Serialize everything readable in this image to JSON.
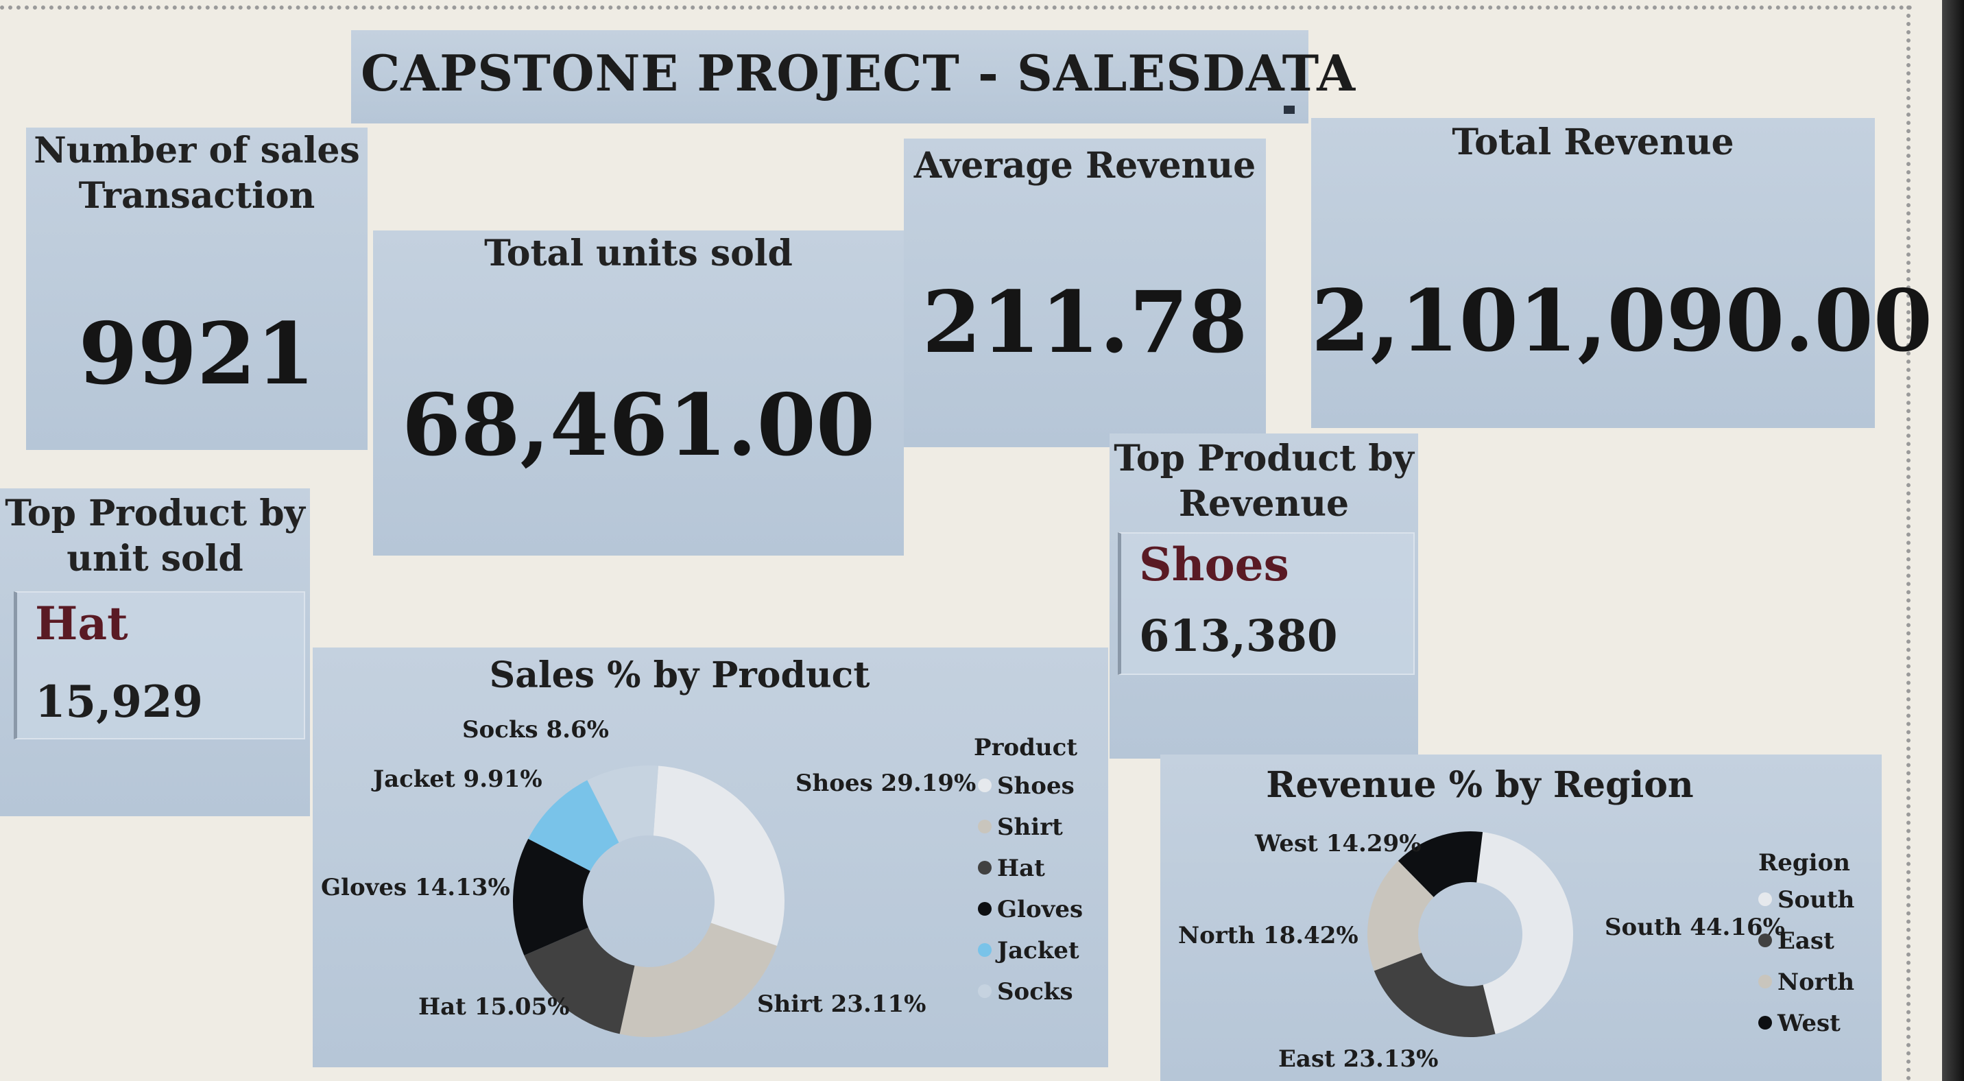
{
  "title": "CAPSTONE PROJECT - SALESDATA",
  "kpis": {
    "transactions": {
      "label_line1": "Number of sales",
      "label_line2": "Transaction",
      "value": "9921"
    },
    "units": {
      "label": "Total units sold",
      "value": "68,461.00"
    },
    "average": {
      "label": "Average Revenue",
      "value": "211.78"
    },
    "total": {
      "label": "Total Revenue",
      "value": "2,101,090.00"
    }
  },
  "top_units": {
    "label_line1": "Top Product by",
    "label_line2": "unit sold",
    "name": "Hat",
    "value": "15,929"
  },
  "top_revenue": {
    "label_line1": "Top Product by",
    "label_line2": "Revenue",
    "name": "Shoes",
    "value": "613,380"
  },
  "colors": {
    "card": "#b9c8d8",
    "background": "#efece4",
    "accent_name": "#5a1a24"
  },
  "chart_data": [
    {
      "type": "pie",
      "title": "Sales % by Product",
      "legend_title": "Product",
      "legend_position": "right",
      "categories": [
        "Shoes",
        "Shirt",
        "Hat",
        "Gloves",
        "Jacket",
        "Socks"
      ],
      "values": [
        29.19,
        23.11,
        15.05,
        14.13,
        9.91,
        8.6
      ],
      "value_labels": [
        "Shoes 29.19%",
        "Shirt 23.11%",
        "Hat 15.05%",
        "Gloves 14.13%",
        "Jacket 9.91%",
        "Socks 8.6%"
      ],
      "colors": [
        "#e6e9ed",
        "#c9c5bd",
        "#414141",
        "#0d0f12",
        "#79c3e9",
        "#c6d3e0"
      ]
    },
    {
      "type": "pie",
      "title": "Revenue % by Region",
      "legend_title": "Region",
      "legend_position": "right",
      "categories": [
        "South",
        "East",
        "North",
        "West"
      ],
      "values": [
        44.16,
        23.13,
        18.42,
        14.29
      ],
      "value_labels": [
        "South 44.16%",
        "East 23.13%",
        "North 18.42%",
        "West 14.29%"
      ],
      "colors": [
        "#e6e9ed",
        "#414141",
        "#c9c5bd",
        "#0d0f12"
      ]
    }
  ]
}
